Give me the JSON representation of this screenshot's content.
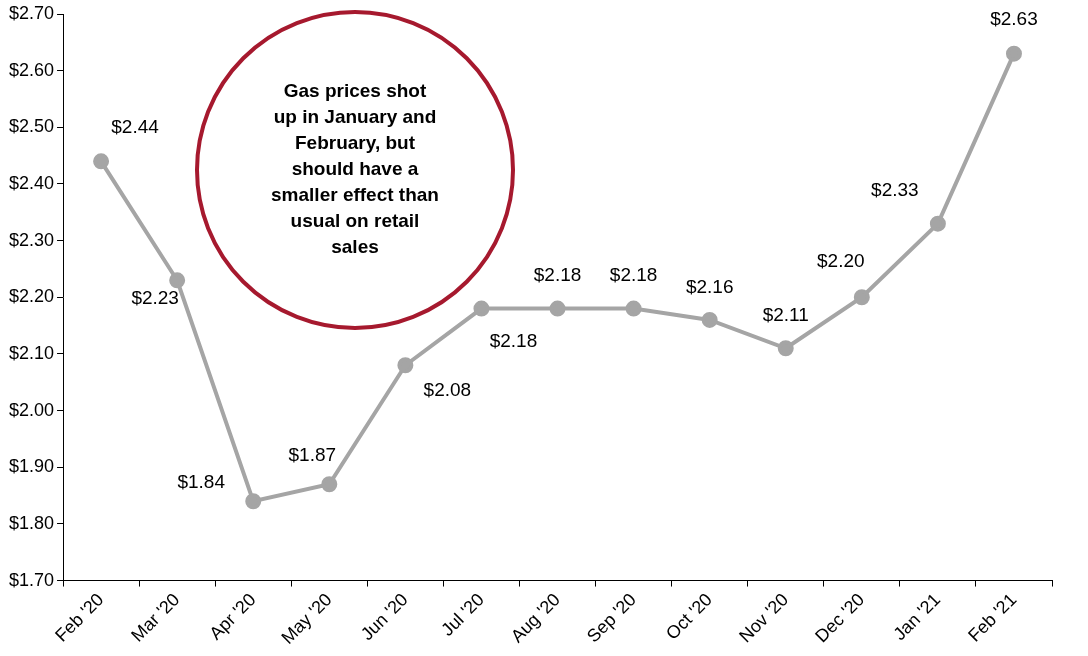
{
  "chart_data": {
    "type": "line",
    "annotation": "Gas prices shot up in January and February, but should have a smaller effect than usual on retail sales",
    "categories": [
      "Feb '20",
      "Mar '20",
      "Apr '20",
      "May '20",
      "Jun '20",
      "Jul '20",
      "Aug '20",
      "Sep '20",
      "Oct '20",
      "Nov '20",
      "Dec '20",
      "Jan '21",
      "Feb '21"
    ],
    "values": [
      2.44,
      2.23,
      1.84,
      1.87,
      2.08,
      2.18,
      2.18,
      2.18,
      2.16,
      2.11,
      2.2,
      2.33,
      2.63
    ],
    "value_labels": [
      "$2.44",
      "$2.23",
      "$1.84",
      "$1.87",
      "$2.08",
      "$2.18",
      "$2.18",
      "$2.18",
      "$2.16",
      "$2.11",
      "$2.20",
      "$2.33",
      "$2.63"
    ],
    "color": "#a5a5a5",
    "marker": "circle",
    "ylim": [
      1.7,
      2.7
    ],
    "yticks": [
      {
        "value": 1.7,
        "label": "$1.70"
      },
      {
        "value": 1.8,
        "label": "$1.80"
      },
      {
        "value": 1.9,
        "label": "$1.90"
      },
      {
        "value": 2.0,
        "label": "$2.00"
      },
      {
        "value": 2.1,
        "label": "$2.10"
      },
      {
        "value": 2.2,
        "label": "$2.20"
      },
      {
        "value": 2.3,
        "label": "$2.30"
      },
      {
        "value": 2.4,
        "label": "$2.40"
      },
      {
        "value": 2.5,
        "label": "$2.50"
      },
      {
        "value": 2.6,
        "label": "$2.60"
      },
      {
        "value": 2.7,
        "label": "$2.70"
      }
    ],
    "grid": false,
    "data_labels": true
  }
}
